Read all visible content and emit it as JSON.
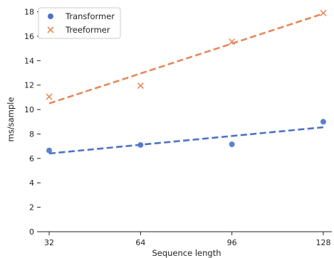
{
  "chart_data": {
    "type": "scatter",
    "xlabel": "Sequence length",
    "ylabel": "ms/sample",
    "x_ticks": [
      32,
      64,
      96,
      128
    ],
    "y_ticks": [
      0,
      2,
      4,
      6,
      8,
      10,
      12,
      14,
      16,
      18
    ],
    "xlim": [
      29,
      131
    ],
    "ylim": [
      0,
      18.5
    ],
    "grid": false,
    "legend_position": "top-left",
    "series": [
      {
        "name": "Transformer",
        "marker": "circle",
        "color": "#4c72c8",
        "x": [
          32,
          64,
          96,
          128
        ],
        "y": [
          6.65,
          7.1,
          7.15,
          9.0
        ],
        "trend": {
          "x": [
            32,
            128
          ],
          "y": [
            6.4,
            8.55
          ]
        }
      },
      {
        "name": "Treeformer",
        "marker": "x",
        "color": "#e8875a",
        "x": [
          32,
          64,
          96,
          128
        ],
        "y": [
          11.05,
          11.95,
          15.55,
          17.9
        ],
        "trend": {
          "x": [
            32,
            128
          ],
          "y": [
            10.5,
            17.85
          ]
        }
      }
    ]
  }
}
